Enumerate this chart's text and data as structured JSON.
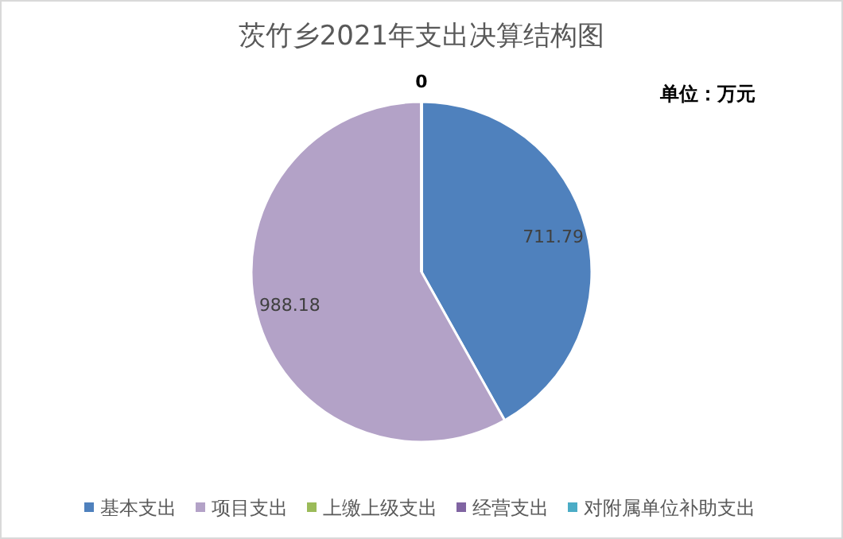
{
  "chart_data": {
    "type": "pie",
    "title": "茨竹乡2021年支出决算结构图",
    "categories": [
      "基本支出",
      "项目支出",
      "上缴上级支出",
      "经营支出",
      "对附属单位补助支出"
    ],
    "values": [
      711.79,
      988.18,
      0,
      0,
      0
    ],
    "colors": [
      "#4f81bd",
      "#b3a2c7",
      "#9bbb59",
      "#8064a2",
      "#4bacc6"
    ],
    "value_labels": [
      "711.79",
      "988.18",
      "0",
      null,
      null
    ],
    "annotations": [
      "单位：万元"
    ],
    "legend": "bottom"
  }
}
